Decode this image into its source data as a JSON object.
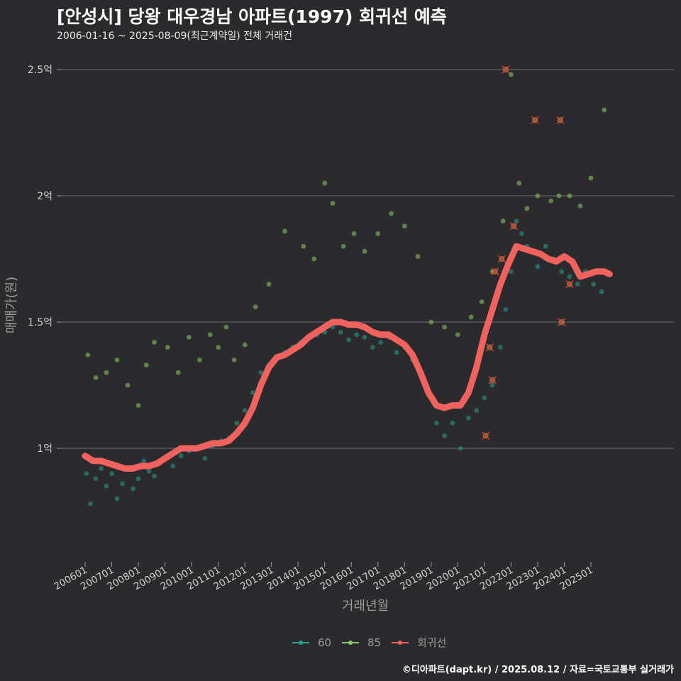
{
  "title": "[안성시] 당왕 대우경남 아파트(1997) 회귀선 예측",
  "subtitle": "2006-01-16 ~ 2025-08-09(최근계약일) 전체 거래건",
  "caption": "©디아파트(dapt.kr) / 2025.08.12 / 자료=국토교통부 실거래가",
  "chart_data": {
    "type": "scatter",
    "xlabel": "거래년월",
    "ylabel": "매매가(원)",
    "x_tick_labels": [
      "200601",
      "200701",
      "200801",
      "200901",
      "201001",
      "201101",
      "201201",
      "201301",
      "201401",
      "201501",
      "201601",
      "201701",
      "201801",
      "201901",
      "202001",
      "202101",
      "202201",
      "202301",
      "202401",
      "202501"
    ],
    "y_ticks": [
      {
        "value": 1.0,
        "label": "1억"
      },
      {
        "value": 1.5,
        "label": "1.5억"
      },
      {
        "value": 2.0,
        "label": "2억"
      },
      {
        "value": 2.5,
        "label": "2.5억"
      }
    ],
    "ylim": [
      0.55,
      2.55
    ],
    "xlim": [
      2005.9,
      2025.9
    ],
    "grid": true,
    "legend_position": "bottom",
    "colors": {
      "s60": "#2a9d8f",
      "s85": "#8ccc6a",
      "regression": "#f0625e",
      "outlier": "#d9332b"
    },
    "legend": [
      {
        "key": "s60",
        "label": "60"
      },
      {
        "key": "s85",
        "label": "85"
      },
      {
        "key": "regression",
        "label": "회귀선"
      }
    ],
    "series": [
      {
        "name": "60",
        "x": [
          2006.05,
          2006.2,
          2006.4,
          2006.6,
          2006.8,
          2007.0,
          2007.2,
          2007.4,
          2007.6,
          2007.8,
          2008.0,
          2008.2,
          2008.4,
          2008.6,
          2008.8,
          2009.0,
          2009.3,
          2009.6,
          2009.9,
          2010.2,
          2010.5,
          2010.8,
          2011.1,
          2011.4,
          2011.7,
          2012.0,
          2012.3,
          2012.6,
          2012.9,
          2013.2,
          2013.5,
          2013.8,
          2014.1,
          2014.4,
          2014.7,
          2015.0,
          2015.3,
          2015.6,
          2015.9,
          2016.2,
          2016.5,
          2016.8,
          2017.1,
          2017.4,
          2017.7,
          2018.0,
          2018.3,
          2018.6,
          2018.9,
          2019.2,
          2019.5,
          2019.8,
          2020.1,
          2020.4,
          2020.7,
          2021.0,
          2021.3,
          2021.6,
          2021.8,
          2022.0,
          2022.2,
          2022.4,
          2022.6,
          2022.8,
          2023.0,
          2023.3,
          2023.6,
          2023.9,
          2024.2,
          2024.5,
          2024.8,
          2025.1,
          2025.4
        ],
        "y": [
          0.9,
          0.78,
          0.88,
          0.92,
          0.85,
          0.9,
          0.8,
          0.86,
          0.92,
          0.84,
          0.88,
          0.95,
          0.91,
          0.89,
          0.94,
          0.96,
          0.93,
          0.97,
          0.99,
          1.0,
          0.96,
          1.01,
          1.03,
          1.04,
          1.1,
          1.15,
          1.22,
          1.3,
          1.33,
          1.36,
          1.38,
          1.4,
          1.42,
          1.44,
          1.45,
          1.46,
          1.48,
          1.46,
          1.43,
          1.45,
          1.44,
          1.4,
          1.42,
          1.44,
          1.38,
          1.4,
          1.35,
          1.3,
          1.22,
          1.1,
          1.05,
          1.1,
          1.0,
          1.12,
          1.15,
          1.2,
          1.25,
          1.4,
          1.55,
          1.7,
          1.9,
          1.85,
          1.8,
          1.78,
          1.72,
          1.8,
          1.75,
          1.7,
          1.68,
          1.65,
          1.7,
          1.65,
          1.62
        ]
      },
      {
        "name": "85",
        "x": [
          2006.1,
          2006.4,
          2006.8,
          2007.2,
          2007.6,
          2008.0,
          2008.3,
          2008.6,
          2009.1,
          2009.5,
          2009.9,
          2010.3,
          2010.7,
          2011.0,
          2011.3,
          2011.6,
          2012.0,
          2012.4,
          2012.9,
          2013.5,
          2014.2,
          2014.6,
          2015.0,
          2015.3,
          2015.7,
          2016.1,
          2016.5,
          2017.0,
          2017.5,
          2018.0,
          2018.5,
          2019.0,
          2019.5,
          2020.0,
          2020.5,
          2020.9,
          2021.3,
          2021.7,
          2022.0,
          2022.3,
          2022.6,
          2023.0,
          2023.5,
          2023.8,
          2024.2,
          2024.6,
          2025.0,
          2025.5
        ],
        "y": [
          1.37,
          1.28,
          1.3,
          1.35,
          1.25,
          1.17,
          1.33,
          1.42,
          1.4,
          1.3,
          1.44,
          1.35,
          1.45,
          1.4,
          1.48,
          1.35,
          1.41,
          1.56,
          1.65,
          1.86,
          1.8,
          1.75,
          2.05,
          1.97,
          1.8,
          1.85,
          1.78,
          1.85,
          1.93,
          1.88,
          1.76,
          1.5,
          1.48,
          1.45,
          1.52,
          1.58,
          1.7,
          1.9,
          2.48,
          2.05,
          1.95,
          2.0,
          1.98,
          2.0,
          2.0,
          1.96,
          2.07,
          2.34
        ]
      }
    ],
    "outliers": {
      "x": [
        2021.05,
        2021.2,
        2021.3,
        2021.4,
        2021.65,
        2021.8,
        2022.1,
        2022.9,
        2023.85,
        2023.9,
        2024.2
      ],
      "y": [
        1.05,
        1.4,
        1.27,
        1.7,
        1.75,
        2.5,
        1.88,
        2.3,
        2.3,
        1.5,
        1.65
      ]
    },
    "regression_line": {
      "x": [
        2006.0,
        2006.3,
        2006.6,
        2006.9,
        2007.2,
        2007.5,
        2007.8,
        2008.1,
        2008.4,
        2008.7,
        2009.0,
        2009.3,
        2009.6,
        2009.9,
        2010.2,
        2010.5,
        2010.8,
        2011.1,
        2011.4,
        2011.7,
        2012.0,
        2012.3,
        2012.6,
        2012.9,
        2013.2,
        2013.5,
        2013.8,
        2014.1,
        2014.4,
        2014.7,
        2015.0,
        2015.3,
        2015.6,
        2015.9,
        2016.2,
        2016.5,
        2016.8,
        2017.1,
        2017.4,
        2017.7,
        2018.0,
        2018.3,
        2018.6,
        2018.9,
        2019.2,
        2019.5,
        2019.8,
        2020.1,
        2020.4,
        2020.7,
        2021.0,
        2021.3,
        2021.6,
        2021.9,
        2022.2,
        2022.5,
        2022.8,
        2023.1,
        2023.4,
        2023.7,
        2024.0,
        2024.3,
        2024.6,
        2024.9,
        2025.2,
        2025.5,
        2025.7
      ],
      "y": [
        0.97,
        0.95,
        0.95,
        0.94,
        0.93,
        0.92,
        0.92,
        0.93,
        0.93,
        0.94,
        0.96,
        0.98,
        1.0,
        1.0,
        1.0,
        1.01,
        1.02,
        1.02,
        1.03,
        1.06,
        1.1,
        1.16,
        1.25,
        1.32,
        1.36,
        1.37,
        1.39,
        1.41,
        1.44,
        1.46,
        1.48,
        1.5,
        1.5,
        1.49,
        1.49,
        1.48,
        1.46,
        1.45,
        1.45,
        1.43,
        1.41,
        1.37,
        1.3,
        1.22,
        1.17,
        1.16,
        1.17,
        1.17,
        1.22,
        1.32,
        1.45,
        1.55,
        1.65,
        1.73,
        1.8,
        1.79,
        1.78,
        1.77,
        1.75,
        1.74,
        1.76,
        1.74,
        1.68,
        1.69,
        1.7,
        1.7,
        1.69
      ]
    }
  }
}
